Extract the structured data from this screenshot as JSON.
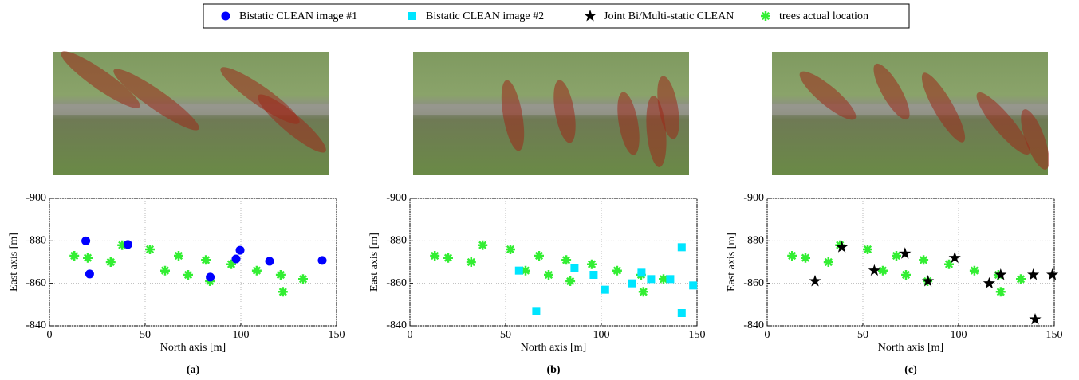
{
  "chart_data": [
    {
      "type": "scatter",
      "caption": "(a)",
      "xlabel": "North axis [m]",
      "ylabel": "East axis [m]",
      "xlim": [
        0,
        150
      ],
      "xticks": [
        0,
        50,
        100,
        150
      ],
      "ylim": [
        -900,
        -840
      ],
      "yticks": [
        -900,
        -880,
        -860,
        -840
      ],
      "y_inverted": true,
      "grid": true,
      "series": [
        {
          "name": "Bistatic CLEAN image #1",
          "color": "#0000ff",
          "marker": "circle",
          "x": [
            19,
            21,
            41,
            84,
            97.5,
            99.6,
            115,
            142.5
          ],
          "values": [
            -880,
            -864.4,
            -878.3,
            -862.9,
            -871.5,
            -875.6,
            -870.4,
            -870.8
          ]
        },
        {
          "name": "trees actual location",
          "color": "#33ee33",
          "marker": "asterisk",
          "x": [
            13,
            20,
            32,
            38,
            52.5,
            60.4,
            67.5,
            72.5,
            81.7,
            83.8,
            95,
            108.3,
            120.8,
            122,
            132.5
          ],
          "values": [
            -873,
            -872,
            -870,
            -878,
            -876,
            -866,
            -873,
            -864,
            -871,
            -861,
            -869,
            -866,
            -864,
            -856,
            -862
          ]
        }
      ]
    },
    {
      "type": "scatter",
      "caption": "(b)",
      "xlabel": "North axis [m]",
      "ylabel": "East axis [m]",
      "xlim": [
        0,
        150
      ],
      "xticks": [
        0,
        50,
        100,
        150
      ],
      "ylim": [
        -900,
        -840
      ],
      "yticks": [
        -900,
        -880,
        -860,
        -840
      ],
      "y_inverted": true,
      "grid": true,
      "series": [
        {
          "name": "Bistatic CLEAN image #2",
          "color": "#00e5ff",
          "marker": "square",
          "x": [
            57,
            66,
            86,
            96,
            102,
            116,
            121,
            126,
            136,
            142,
            142,
            148
          ],
          "values": [
            -866,
            -847,
            -867,
            -864,
            -857,
            -860,
            -865,
            -862,
            -862,
            -877,
            -846,
            -859
          ]
        },
        {
          "color": "#33ee33",
          "marker": "asterisk",
          "x": [
            13,
            20,
            32,
            38,
            52.5,
            60.4,
            67.5,
            72.5,
            81.7,
            83.8,
            95,
            108.3,
            120.8,
            122,
            132.5
          ],
          "values": [
            -873,
            -872,
            -870,
            -878,
            -876,
            -866,
            -873,
            -864,
            -871,
            -861,
            -869,
            -866,
            -864,
            -856,
            -862
          ]
        }
      ]
    },
    {
      "type": "scatter",
      "caption": "(c)",
      "xlabel": "North axis [m]",
      "ylabel": "East axis [m]",
      "xlim": [
        0,
        150
      ],
      "xticks": [
        0,
        50,
        100,
        150
      ],
      "ylim": [
        -900,
        -840
      ],
      "yticks": [
        -900,
        -880,
        -860,
        -840
      ],
      "y_inverted": true,
      "grid": true,
      "series": [
        {
          "name": "Joint Bi/Multi-static CLEAN",
          "color": "#000000",
          "marker": "star",
          "x": [
            25,
            39,
            56,
            72,
            84,
            98,
            116,
            122,
            139,
            149,
            140
          ],
          "values": [
            -861,
            -877,
            -866,
            -874,
            -861,
            -872,
            -860,
            -864,
            -864,
            -864,
            -843
          ]
        },
        {
          "color": "#33ee33",
          "marker": "asterisk",
          "x": [
            13,
            20,
            32,
            38,
            52.5,
            60.4,
            67.5,
            72.5,
            81.7,
            83.8,
            95,
            108.3,
            120.8,
            122,
            132.5
          ],
          "values": [
            -873,
            -872,
            -870,
            -878,
            -876,
            -866,
            -873,
            -864,
            -871,
            -861,
            -869,
            -866,
            -864,
            -856,
            -862
          ]
        }
      ]
    }
  ]
}
